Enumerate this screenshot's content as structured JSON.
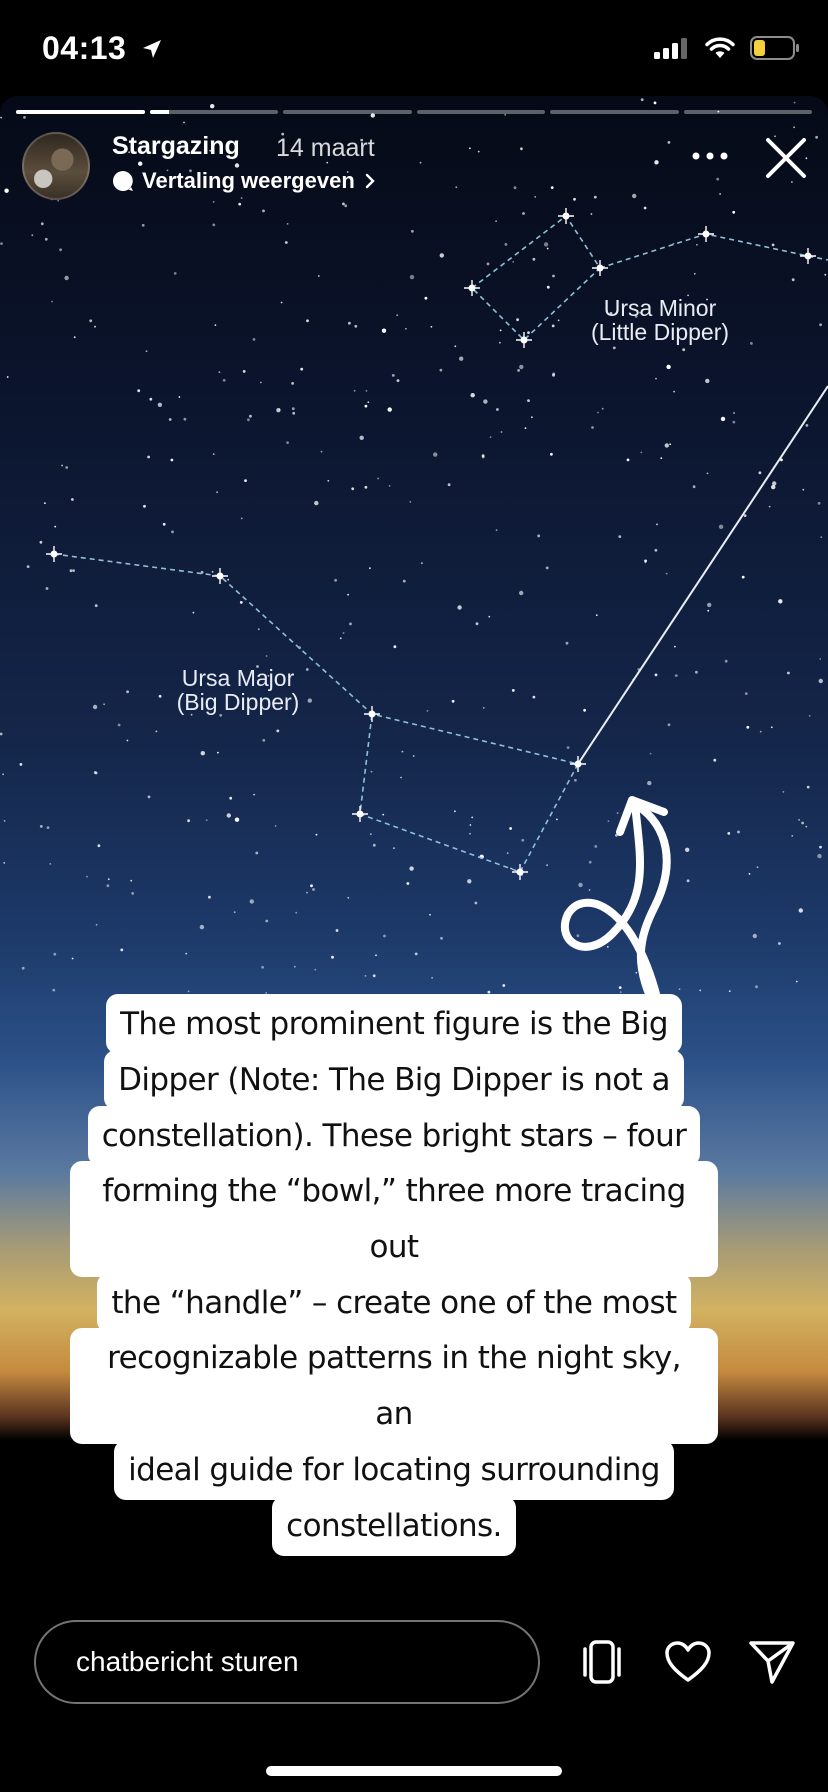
{
  "status_bar": {
    "time": "04:13",
    "icons": [
      "location-arrow-icon",
      "cellular-signal-icon",
      "wifi-icon",
      "battery-icon"
    ],
    "battery_color": "#f4d03f"
  },
  "story": {
    "progress": {
      "segments": 6,
      "active_index": 1,
      "active_fraction": 0.15
    },
    "user": "Stargazing",
    "date": "14 maart",
    "translate_label": "Vertaling weergeven",
    "labels": {
      "ursa_minor": [
        "Ursa Minor",
        "(Little Dipper)"
      ],
      "ursa_major": [
        "Ursa Major",
        "(Big Dipper)"
      ]
    },
    "caption_lines": [
      "The most prominent figure is the Big",
      "Dipper (Note: The Big Dipper is not a",
      "constellation). These bright stars – four",
      "forming the “bowl,” three more tracing out",
      "the “handle” – create one of the most",
      "recognizable patterns in the night sky, an",
      "ideal guide for locating surrounding",
      "constellations."
    ]
  },
  "bottom_bar": {
    "chat_placeholder": "chatbericht sturen",
    "icons": [
      "rotate-phone-icon",
      "heart-icon",
      "send-icon"
    ]
  }
}
